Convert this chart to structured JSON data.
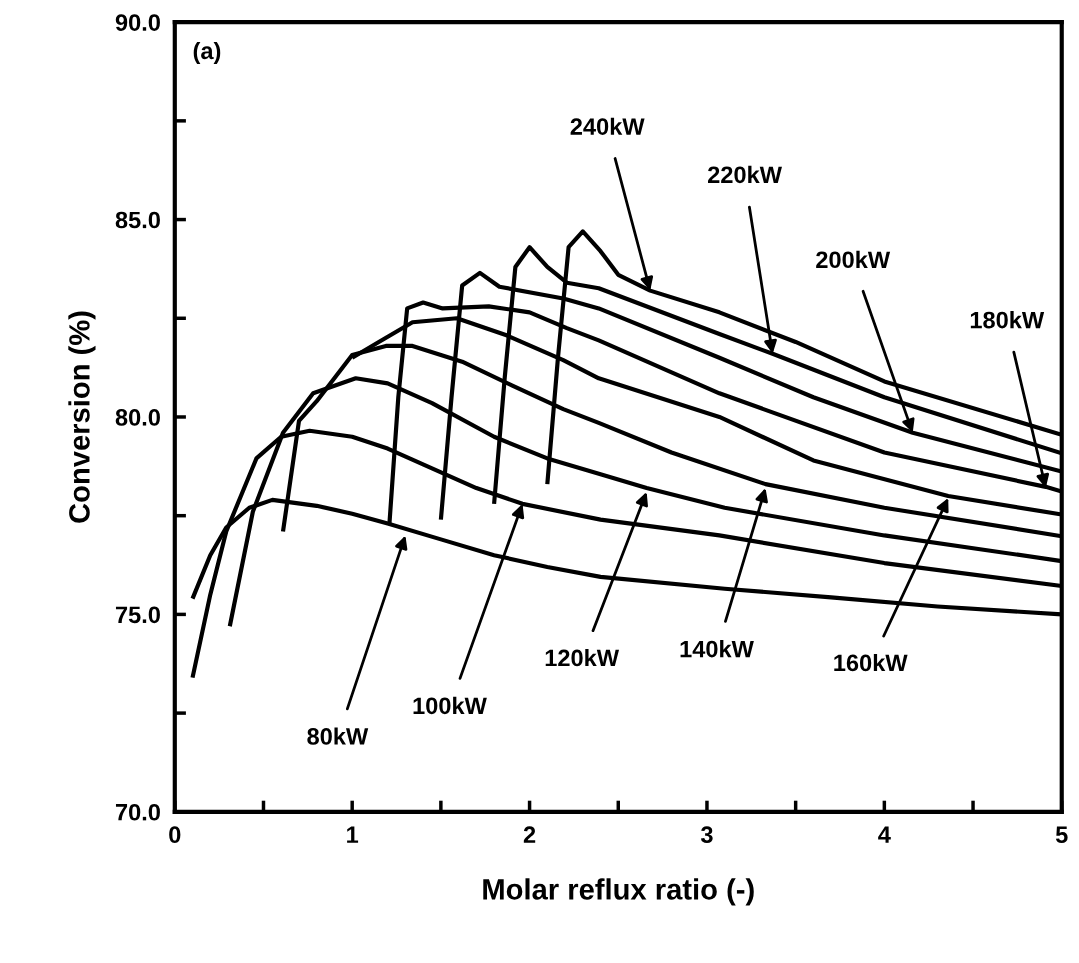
{
  "chart_data": {
    "type": "line",
    "xlabel": "Molar reflux ratio (-)",
    "ylabel": "Conversion (%)",
    "xlim": [
      0,
      5
    ],
    "ylim": [
      70,
      90
    ],
    "xticks": [
      0,
      {
        "value": 0.5,
        "label": null
      },
      1,
      {
        "value": 1.5,
        "label": null
      },
      2,
      {
        "value": 2.5,
        "label": null
      },
      3,
      {
        "value": 3.5,
        "label": null
      },
      4,
      {
        "value": 4.5,
        "label": null
      },
      5
    ],
    "yticks": [
      {
        "value": 70,
        "label": "70.0"
      },
      {
        "value": 72.5,
        "label": null
      },
      {
        "value": 75,
        "label": "75.0"
      },
      {
        "value": 77.5,
        "label": null
      },
      {
        "value": 80,
        "label": "80.0"
      },
      {
        "value": 82.5,
        "label": null
      },
      {
        "value": 85,
        "label": "85.0"
      },
      {
        "value": 87.5,
        "label": null
      },
      {
        "value": 90,
        "label": "90.0"
      }
    ],
    "grid": false,
    "marker": "none",
    "line_style": "solid",
    "series": [
      {
        "color": "#000000",
        "x": [
          0.1,
          0.2,
          0.29,
          0.42,
          0.55,
          0.8,
          1.0,
          1.2,
          1.5,
          1.8,
          2.1,
          2.4,
          3.1,
          3.7,
          4.3,
          5.0
        ],
        "values": [
          75.4,
          76.5,
          77.2,
          77.7,
          77.9,
          77.75,
          77.55,
          77.3,
          76.9,
          76.5,
          76.2,
          75.95,
          75.65,
          75.43,
          75.2,
          75.0
        ]
      },
      {
        "color": "#000000",
        "x": [
          0.1,
          0.2,
          0.29,
          0.46,
          0.6,
          0.76,
          1.0,
          1.2,
          1.45,
          1.7,
          1.96,
          2.4,
          3.07,
          4.0,
          5.0
        ],
        "values": [
          73.4,
          75.5,
          77.1,
          78.95,
          79.5,
          79.65,
          79.5,
          79.2,
          78.7,
          78.2,
          77.8,
          77.4,
          77.0,
          76.3,
          75.72
        ]
      },
      {
        "color": "#000000",
        "x": [
          0.31,
          0.44,
          0.61,
          0.78,
          1.02,
          1.2,
          1.45,
          1.8,
          2.1,
          2.4,
          2.66,
          3.1,
          4.0,
          5.0
        ],
        "values": [
          74.7,
          77.6,
          79.6,
          80.6,
          80.98,
          80.85,
          80.35,
          79.5,
          78.95,
          78.55,
          78.2,
          77.7,
          77.0,
          76.35
        ]
      },
      {
        "color": "#000000",
        "x": [
          0.61,
          0.7,
          0.8,
          1.0,
          1.19,
          1.34,
          1.62,
          1.9,
          2.19,
          2.39,
          2.8,
          3.33,
          4.0,
          5.0
        ],
        "values": [
          77.1,
          79.9,
          80.4,
          81.57,
          81.8,
          81.8,
          81.4,
          80.8,
          80.2,
          79.85,
          79.1,
          78.3,
          77.7,
          76.98
        ]
      },
      {
        "color": "#000000",
        "x": [
          1.0,
          1.15,
          1.34,
          1.59,
          1.87,
          2.19,
          2.39,
          3.07,
          3.6,
          4.36,
          5.0
        ],
        "values": [
          81.5,
          81.9,
          82.4,
          82.5,
          82.07,
          81.44,
          80.98,
          80.0,
          78.9,
          78.0,
          77.53
        ]
      },
      {
        "color": "#000000",
        "x": [
          1.21,
          1.26,
          1.31,
          1.4,
          1.51,
          1.77,
          2.0,
          2.21,
          2.39,
          3.07,
          4.0,
          4.91,
          5.0
        ],
        "values": [
          77.3,
          80.5,
          82.75,
          82.9,
          82.75,
          82.8,
          82.65,
          82.25,
          81.94,
          80.6,
          79.1,
          78.23,
          78.11
        ]
      },
      {
        "color": "#000000",
        "x": [
          1.5,
          1.56,
          1.62,
          1.72,
          1.83,
          2.19,
          2.39,
          3.07,
          3.6,
          4.16,
          5.0
        ],
        "values": [
          77.4,
          80.5,
          83.33,
          83.65,
          83.3,
          83.0,
          82.75,
          81.5,
          80.5,
          79.6,
          78.62
        ]
      },
      {
        "color": "#000000",
        "x": [
          1.8,
          1.86,
          1.92,
          2.0,
          2.1,
          2.21,
          2.39,
          3.07,
          3.37,
          4.0,
          5.0
        ],
        "values": [
          77.8,
          81.0,
          83.8,
          84.3,
          83.8,
          83.4,
          83.26,
          82.1,
          81.6,
          80.5,
          79.08
        ]
      },
      {
        "color": "#000000",
        "x": [
          2.1,
          2.16,
          2.22,
          2.3,
          2.4,
          2.5,
          2.68,
          3.07,
          3.5,
          4.0,
          5.0
        ],
        "values": [
          78.3,
          81.5,
          84.3,
          84.7,
          84.2,
          83.6,
          83.2,
          82.65,
          81.9,
          80.9,
          79.55
        ]
      }
    ],
    "annotations": [
      {
        "text": "80kW",
        "x": 1.3,
        "y": 77.0
      },
      {
        "text": "100kW",
        "x": 1.96,
        "y": 77.8
      },
      {
        "text": "120kW",
        "x": 2.66,
        "y": 78.1
      },
      {
        "text": "140kW",
        "x": 3.33,
        "y": 78.2
      },
      {
        "text": "160kW",
        "x": 4.36,
        "y": 77.95
      },
      {
        "text": "180kW",
        "x": 4.91,
        "y": 78.2
      },
      {
        "text": "200kW",
        "x": 4.16,
        "y": 79.6
      },
      {
        "text": "220kW",
        "x": 3.37,
        "y": 81.6
      },
      {
        "text": "240kW",
        "x": 2.68,
        "y": 83.2
      },
      "(a)"
    ]
  }
}
